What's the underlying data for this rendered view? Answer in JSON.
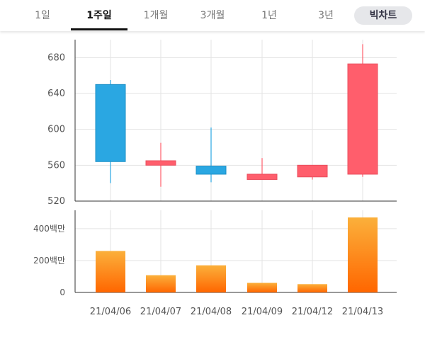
{
  "tabs": [
    {
      "label": "1일",
      "active": false
    },
    {
      "label": "1주일",
      "active": true
    },
    {
      "label": "1개월",
      "active": false
    },
    {
      "label": "3개월",
      "active": false
    },
    {
      "label": "1년",
      "active": false
    },
    {
      "label": "3년",
      "active": false
    }
  ],
  "view_button": "빅차트",
  "chart_data": [
    {
      "type": "candlestick",
      "dates": [
        "21/04/06",
        "21/04/07",
        "21/04/08",
        "21/04/09",
        "21/04/12",
        "21/04/13"
      ],
      "open": [
        650,
        560,
        559,
        544,
        547,
        550
      ],
      "close": [
        564,
        565,
        550,
        550,
        560,
        673
      ],
      "high": [
        655,
        585,
        602,
        568,
        560,
        695
      ],
      "low": [
        540,
        536,
        541,
        544,
        544,
        547
      ],
      "yticks": [
        "520",
        "560",
        "600",
        "640",
        "680"
      ],
      "ylim": [
        520,
        700
      ],
      "colors": {
        "up": "#ff5e6c",
        "down": "#2aa7e2"
      },
      "grid": true
    },
    {
      "type": "bar",
      "categories": [
        "21/04/06",
        "21/04/07",
        "21/04/08",
        "21/04/09",
        "21/04/12",
        "21/04/13"
      ],
      "values": [
        260,
        108,
        170,
        60,
        52,
        470
      ],
      "unit": "백만",
      "yticks": [
        "0",
        "200백만",
        "400백만"
      ],
      "ylim": [
        0,
        515
      ],
      "colors": {
        "bar_top": "#fbb03b",
        "bar_bottom": "#ff6600"
      },
      "grid": true
    }
  ]
}
